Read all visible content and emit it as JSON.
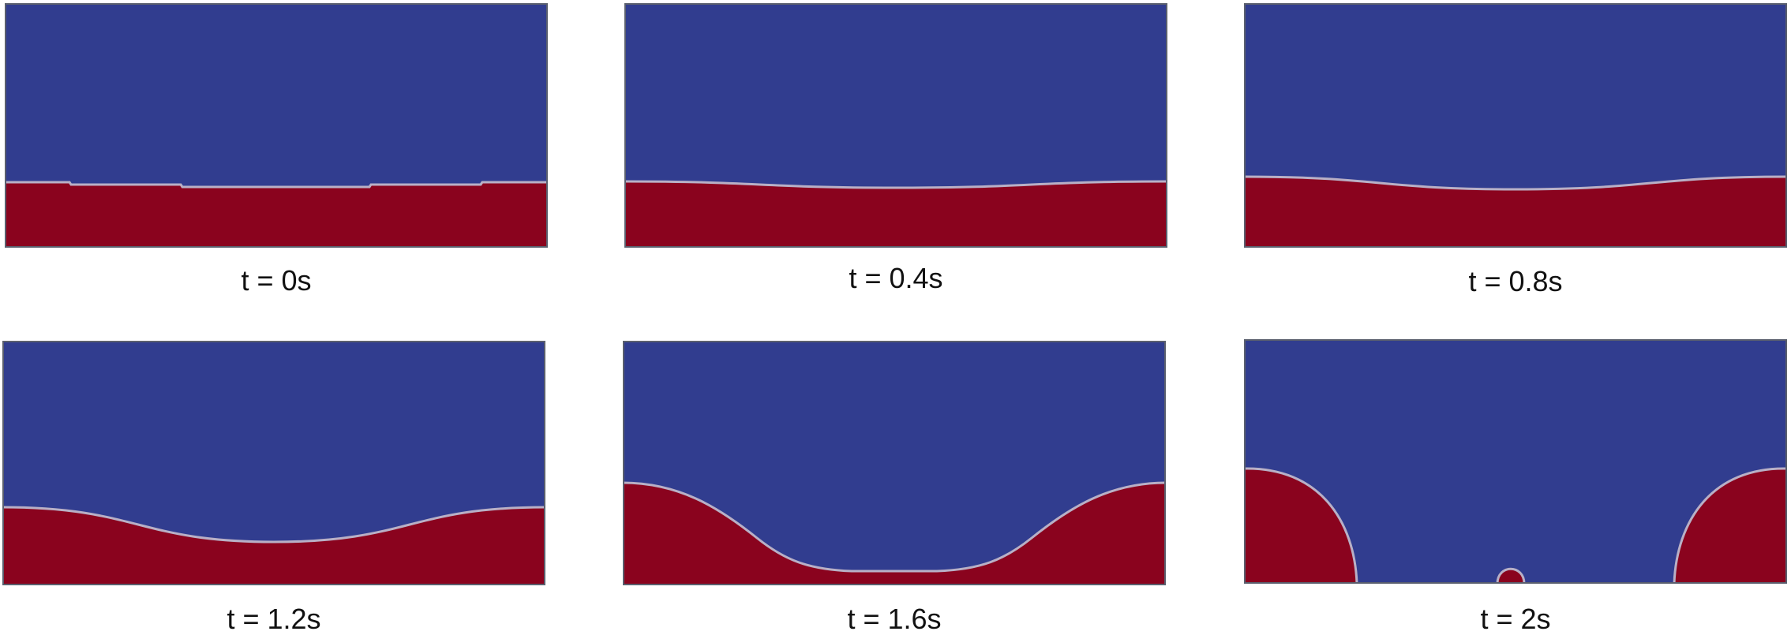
{
  "colors": {
    "gas": "#313d8f",
    "liquid": "#8a031e",
    "interface": "#b9b0c6",
    "frame": "#5a5f6e"
  },
  "panels": [
    {
      "caption": "t = 0s",
      "snapshot": "flat-interface-small-steps"
    },
    {
      "caption": "t = 0.4s",
      "snapshot": "slight-sinusoidal-dip"
    },
    {
      "caption": "t = 0.8s",
      "snapshot": "growing-sinusoidal-dip"
    },
    {
      "caption": "t = 1.2s",
      "snapshot": "large-sinusoidal-dip"
    },
    {
      "caption": "t = 1.6s",
      "snapshot": "deep-trough-thin-film"
    },
    {
      "caption": "t = 2s",
      "snapshot": "droplets-detached"
    }
  ]
}
